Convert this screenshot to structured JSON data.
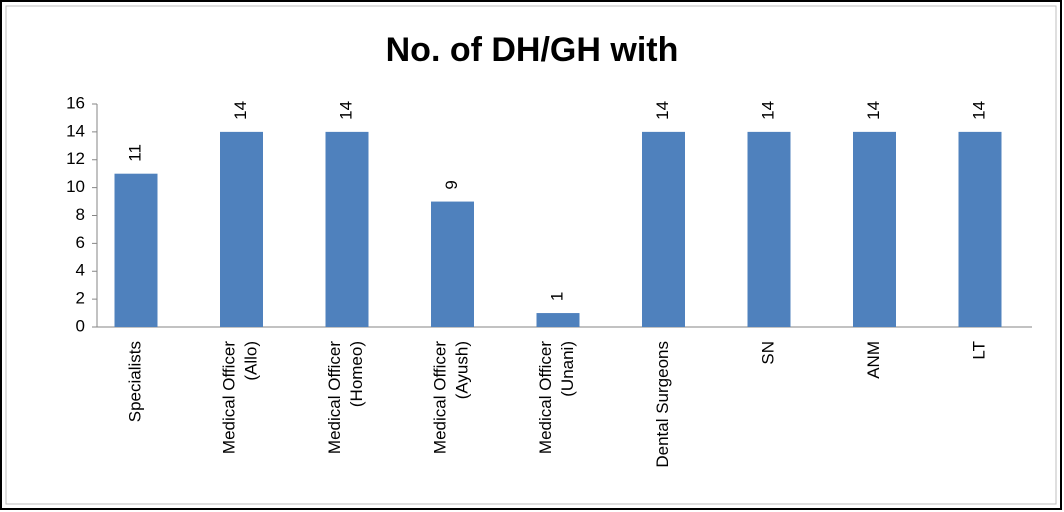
{
  "chart_data": {
    "type": "bar",
    "title": "No. of DH/GH with",
    "categories": [
      "Specialists",
      "Medical Officer (Allo)",
      "Medical Officer (Homeo)",
      "Medical Officer (Ayush)",
      "Medical Officer (Unani)",
      "Dental Surgeons",
      "SN",
      "ANM",
      "LT"
    ],
    "values": [
      11,
      14,
      14,
      9,
      1,
      14,
      14,
      14,
      14
    ],
    "color": "#4f81bd",
    "ylim": [
      0,
      16
    ],
    "yticks": [
      0,
      2,
      4,
      6,
      8,
      10,
      12,
      14,
      16
    ],
    "grid": false
  }
}
